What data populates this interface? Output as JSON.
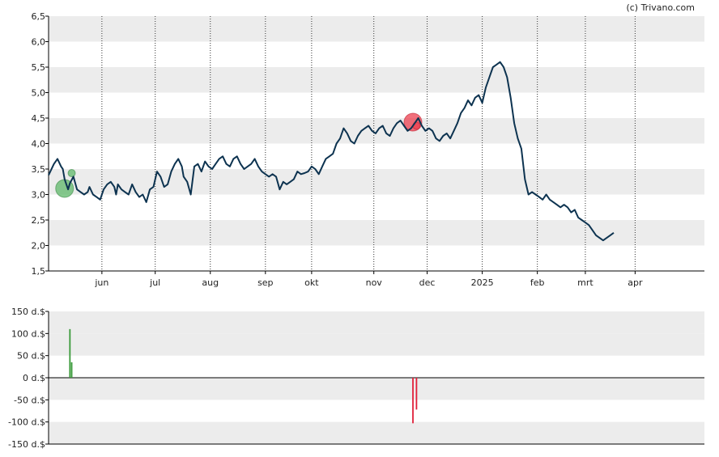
{
  "credit": "(c) Trivano.com",
  "colors": {
    "price_line": "#0d3350",
    "band": "#ececec",
    "buy": "#3a9a3a",
    "sell": "#e0203a",
    "buy_marker": "#5fb86a",
    "sell_marker": "#ec4050"
  },
  "chart_data": [
    {
      "type": "line",
      "y_ticks": [
        "1,5",
        "2,0",
        "2,5",
        "3,0",
        "3,5",
        "4,0",
        "4,5",
        "5,0",
        "5,5",
        "6,0",
        "6,5"
      ],
      "ylim": [
        1.5,
        6.5
      ],
      "x_ticks": [
        {
          "label": "jun",
          "x": 18
        },
        {
          "label": "jul",
          "x": 48
        },
        {
          "label": "aug",
          "x": 79
        },
        {
          "label": "sep",
          "x": 110
        },
        {
          "label": "okt",
          "x": 136
        },
        {
          "label": "nov",
          "x": 171
        },
        {
          "label": "dec",
          "x": 201
        },
        {
          "label": "2025",
          "x": 232
        },
        {
          "label": "feb",
          "x": 263
        },
        {
          "label": "mrt",
          "x": 290
        },
        {
          "label": "apr",
          "x": 318
        }
      ],
      "xlim": [
        -12,
        357
      ],
      "grid": true,
      "series": [
        {
          "points": [
            [
              -12,
              3.38
            ],
            [
              -9,
              3.6
            ],
            [
              -7,
              3.7
            ],
            [
              -5,
              3.55
            ],
            [
              -4,
              3.5
            ],
            [
              -3,
              3.3
            ],
            [
              -1,
              3.1
            ],
            [
              0,
              3.22
            ],
            [
              2,
              3.35
            ],
            [
              4,
              3.1
            ],
            [
              6,
              3.05
            ],
            [
              8,
              3.0
            ],
            [
              10,
              3.05
            ],
            [
              11,
              3.15
            ],
            [
              13,
              3.0
            ],
            [
              15,
              2.95
            ],
            [
              17,
              2.9
            ],
            [
              19,
              3.1
            ],
            [
              21,
              3.2
            ],
            [
              23,
              3.25
            ],
            [
              25,
              3.15
            ],
            [
              26,
              3.0
            ],
            [
              27,
              3.2
            ],
            [
              29,
              3.1
            ],
            [
              31,
              3.05
            ],
            [
              33,
              3.0
            ],
            [
              35,
              3.2
            ],
            [
              37,
              3.05
            ],
            [
              39,
              2.95
            ],
            [
              41,
              3.0
            ],
            [
              43,
              2.85
            ],
            [
              45,
              3.1
            ],
            [
              47,
              3.15
            ],
            [
              49,
              3.45
            ],
            [
              51,
              3.35
            ],
            [
              53,
              3.15
            ],
            [
              55,
              3.2
            ],
            [
              57,
              3.45
            ],
            [
              59,
              3.6
            ],
            [
              61,
              3.7
            ],
            [
              63,
              3.55
            ],
            [
              64,
              3.35
            ],
            [
              66,
              3.25
            ],
            [
              68,
              3.0
            ],
            [
              70,
              3.55
            ],
            [
              72,
              3.6
            ],
            [
              74,
              3.45
            ],
            [
              76,
              3.65
            ],
            [
              78,
              3.55
            ],
            [
              80,
              3.5
            ],
            [
              82,
              3.6
            ],
            [
              84,
              3.7
            ],
            [
              86,
              3.75
            ],
            [
              88,
              3.6
            ],
            [
              90,
              3.55
            ],
            [
              92,
              3.7
            ],
            [
              94,
              3.75
            ],
            [
              96,
              3.6
            ],
            [
              98,
              3.5
            ],
            [
              100,
              3.55
            ],
            [
              102,
              3.6
            ],
            [
              104,
              3.7
            ],
            [
              106,
              3.55
            ],
            [
              108,
              3.45
            ],
            [
              110,
              3.4
            ],
            [
              112,
              3.35
            ],
            [
              114,
              3.4
            ],
            [
              116,
              3.35
            ],
            [
              118,
              3.1
            ],
            [
              120,
              3.25
            ],
            [
              122,
              3.2
            ],
            [
              124,
              3.25
            ],
            [
              126,
              3.3
            ],
            [
              128,
              3.45
            ],
            [
              130,
              3.4
            ],
            [
              132,
              3.42
            ],
            [
              134,
              3.45
            ],
            [
              136,
              3.55
            ],
            [
              138,
              3.5
            ],
            [
              140,
              3.4
            ],
            [
              142,
              3.55
            ],
            [
              144,
              3.7
            ],
            [
              146,
              3.75
            ],
            [
              148,
              3.8
            ],
            [
              150,
              4.0
            ],
            [
              152,
              4.1
            ],
            [
              154,
              4.3
            ],
            [
              156,
              4.2
            ],
            [
              158,
              4.05
            ],
            [
              160,
              4.0
            ],
            [
              162,
              4.15
            ],
            [
              164,
              4.25
            ],
            [
              166,
              4.3
            ],
            [
              168,
              4.35
            ],
            [
              170,
              4.25
            ],
            [
              172,
              4.2
            ],
            [
              174,
              4.3
            ],
            [
              176,
              4.35
            ],
            [
              178,
              4.2
            ],
            [
              180,
              4.15
            ],
            [
              182,
              4.3
            ],
            [
              184,
              4.4
            ],
            [
              186,
              4.45
            ],
            [
              188,
              4.35
            ],
            [
              190,
              4.25
            ],
            [
              192,
              4.3
            ],
            [
              194,
              4.4
            ],
            [
              196,
              4.5
            ],
            [
              198,
              4.35
            ],
            [
              200,
              4.25
            ],
            [
              202,
              4.3
            ],
            [
              204,
              4.25
            ],
            [
              206,
              4.1
            ],
            [
              208,
              4.05
            ],
            [
              210,
              4.15
            ],
            [
              212,
              4.2
            ],
            [
              214,
              4.1
            ],
            [
              216,
              4.25
            ],
            [
              218,
              4.4
            ],
            [
              220,
              4.6
            ],
            [
              222,
              4.7
            ],
            [
              224,
              4.85
            ],
            [
              226,
              4.75
            ],
            [
              228,
              4.9
            ],
            [
              230,
              4.95
            ],
            [
              232,
              4.8
            ],
            [
              234,
              5.1
            ],
            [
              236,
              5.3
            ],
            [
              238,
              5.5
            ],
            [
              240,
              5.55
            ],
            [
              242,
              5.6
            ],
            [
              244,
              5.5
            ],
            [
              246,
              5.3
            ],
            [
              248,
              4.9
            ],
            [
              250,
              4.4
            ],
            [
              252,
              4.1
            ],
            [
              254,
              3.9
            ],
            [
              256,
              3.3
            ],
            [
              258,
              3.0
            ],
            [
              260,
              3.05
            ],
            [
              262,
              3.0
            ],
            [
              264,
              2.95
            ],
            [
              266,
              2.9
            ],
            [
              268,
              3.0
            ],
            [
              270,
              2.9
            ],
            [
              272,
              2.85
            ],
            [
              274,
              2.8
            ],
            [
              276,
              2.75
            ],
            [
              278,
              2.8
            ],
            [
              280,
              2.75
            ],
            [
              282,
              2.65
            ],
            [
              284,
              2.7
            ],
            [
              286,
              2.55
            ],
            [
              288,
              2.5
            ],
            [
              290,
              2.45
            ],
            [
              292,
              2.4
            ],
            [
              294,
              2.3
            ],
            [
              296,
              2.2
            ],
            [
              298,
              2.15
            ],
            [
              300,
              2.1
            ],
            [
              302,
              2.15
            ],
            [
              304,
              2.2
            ],
            [
              306,
              2.25
            ]
          ]
        }
      ],
      "markers": [
        {
          "kind": "buy",
          "x": -3,
          "y": 3.12,
          "size": "large"
        },
        {
          "kind": "buy",
          "x": 1,
          "y": 3.42,
          "size": "small"
        },
        {
          "kind": "sell",
          "x": 193,
          "y": 4.42,
          "size": "large"
        },
        {
          "kind": "sell",
          "x": 195,
          "y": 4.35,
          "size": "small"
        }
      ]
    },
    {
      "type": "bar",
      "y_ticks": [
        "150 d.$",
        "100 d.$",
        "50 d.$",
        "0 d.$",
        "-50 d.$",
        "-100 d.$",
        "-150 d.$"
      ],
      "ylim": [
        -150,
        150
      ],
      "bars": [
        {
          "x": 0,
          "value": 110,
          "kind": "buy"
        },
        {
          "x": 1,
          "value": 35,
          "kind": "buy"
        },
        {
          "x": 193,
          "value": -103,
          "kind": "sell"
        },
        {
          "x": 195,
          "value": -72,
          "kind": "sell"
        }
      ]
    }
  ]
}
